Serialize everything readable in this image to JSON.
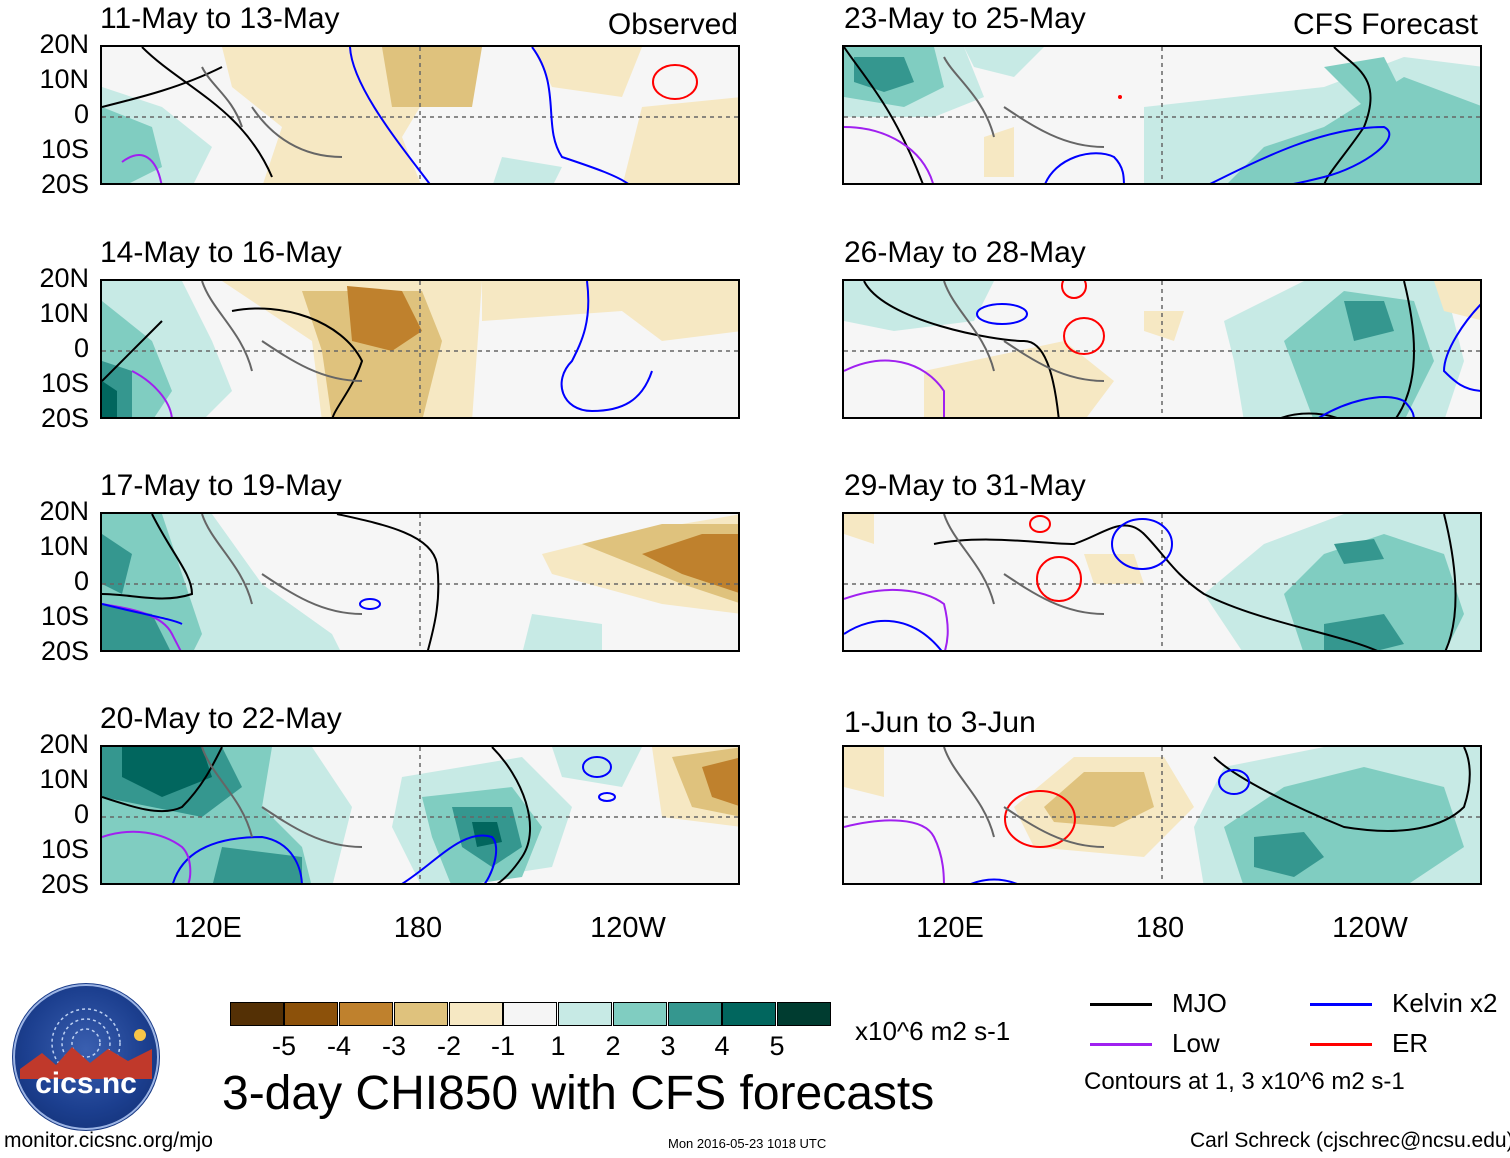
{
  "axes": {
    "lat_labels": [
      "20N",
      "10N",
      "0",
      "10S",
      "20S"
    ],
    "lon_labels": [
      "120E",
      "180",
      "120W"
    ]
  },
  "panels_left": [
    {
      "title": "11-May to 13-May",
      "tag": "Observed"
    },
    {
      "title": "14-May to 16-May",
      "tag": ""
    },
    {
      "title": "17-May to 19-May",
      "tag": ""
    },
    {
      "title": "20-May to 22-May",
      "tag": ""
    }
  ],
  "panels_right": [
    {
      "title": "23-May to 25-May",
      "tag": "CFS Forecast"
    },
    {
      "title": "26-May to 28-May",
      "tag": ""
    },
    {
      "title": "29-May to 31-May",
      "tag": ""
    },
    {
      "title": "1-Jun to 3-Jun",
      "tag": ""
    }
  ],
  "colorbar": {
    "labels": [
      "-5",
      "-4",
      "-3",
      "-2",
      "-1",
      "1",
      "2",
      "3",
      "4",
      "5"
    ],
    "colors": [
      "#543005",
      "#8c510a",
      "#bf812d",
      "#dfc27d",
      "#f6e8c3",
      "#f5f5f5",
      "#c7eae5",
      "#80cdc1",
      "#35978f",
      "#01665e",
      "#003c30"
    ],
    "units": "x10^6 m2 s-1"
  },
  "title": "3-day CHI850 with CFS forecasts",
  "legend": {
    "items": [
      {
        "label": "MJO",
        "color": "#000000"
      },
      {
        "label": "Kelvin x2",
        "color": "#0000ff"
      },
      {
        "label": "Low",
        "color": "#a020f0"
      },
      {
        "label": "ER",
        "color": "#ff0000"
      }
    ],
    "note": "Contours at 1, 3 x10^6 m2 s-1"
  },
  "logo": {
    "text": "cics.nc",
    "ring_text": "Cooperative Institute for Climate and Satellites"
  },
  "footer": {
    "url": "monitor.cicsnc.org/mjo",
    "timestamp": "Mon 2016-05-23 1018 UTC",
    "author": "Carl Schreck (cjschrec@ncsu.edu)"
  }
}
